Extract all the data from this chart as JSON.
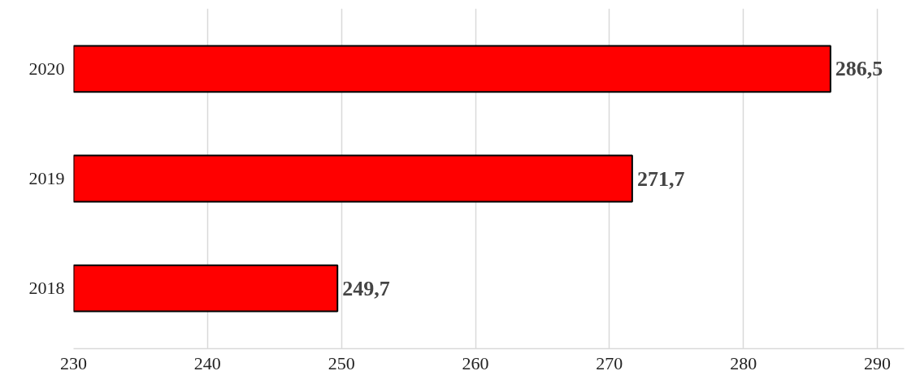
{
  "chart_data": {
    "type": "bar",
    "orientation": "horizontal",
    "categories": [
      "2020",
      "2019",
      "2018"
    ],
    "values": [
      286.5,
      271.7,
      249.7
    ],
    "value_labels": [
      "286,5",
      "271,7",
      "249,7"
    ],
    "color": "#ff0000",
    "xlim": [
      230,
      292
    ],
    "xticks": [
      230,
      240,
      250,
      260,
      270,
      280,
      290
    ],
    "grid": "x"
  }
}
